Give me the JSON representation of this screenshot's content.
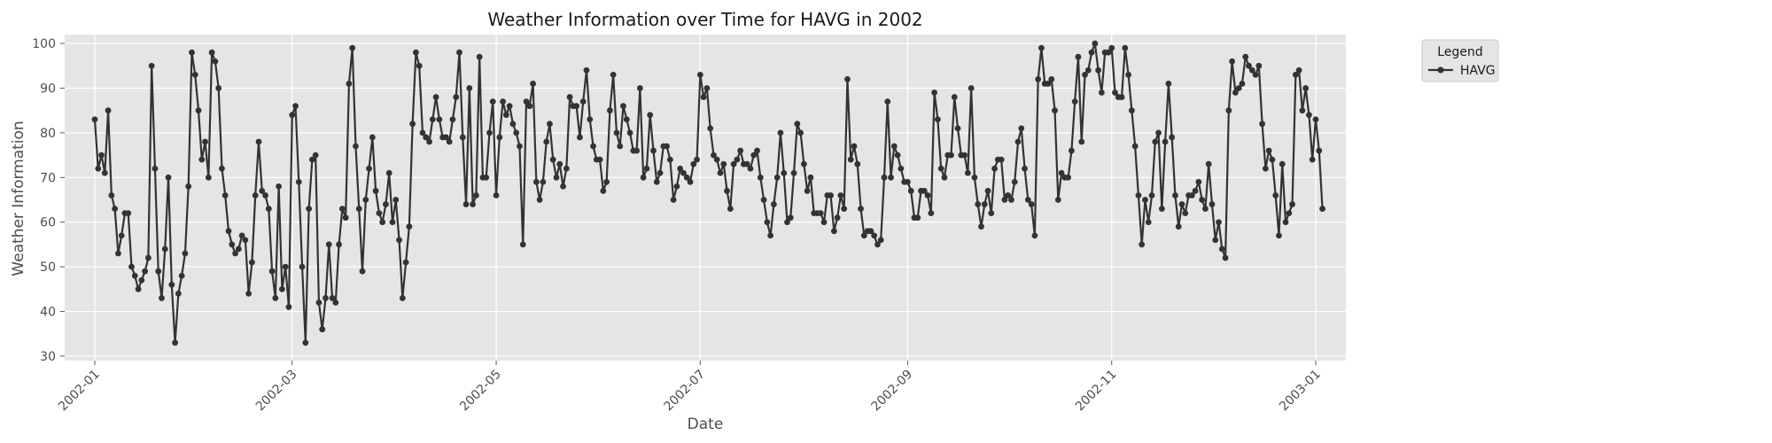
{
  "chart_data": {
    "type": "line",
    "title": "Weather Information over Time for HAVG in 2002",
    "xlabel": "Date",
    "ylabel": "Weather Information",
    "ylim": [
      29,
      102
    ],
    "xlim": [
      "2001-12-23",
      "2003-01-10"
    ],
    "x_ticks": [
      "2002-01",
      "2002-03",
      "2002-05",
      "2002-07",
      "2002-09",
      "2002-11",
      "2003-01"
    ],
    "y_ticks": [
      30,
      40,
      50,
      60,
      70,
      80,
      90,
      100
    ],
    "grid": true,
    "legend": {
      "title": "Legend",
      "placement": "outside-top-right"
    },
    "series": [
      {
        "name": "HAVG",
        "color": "#333333",
        "start_date": "2002-01-01",
        "step_days": 1,
        "values": [
          83,
          72,
          75,
          71,
          85,
          66,
          63,
          53,
          57,
          62,
          62,
          50,
          48,
          45,
          47,
          49,
          52,
          95,
          72,
          49,
          43,
          54,
          70,
          46,
          33,
          44,
          48,
          53,
          68,
          98,
          93,
          85,
          74,
          78,
          70,
          98,
          96,
          90,
          72,
          66,
          58,
          55,
          53,
          54,
          57,
          56,
          44,
          51,
          66,
          78,
          67,
          66,
          63,
          49,
          43,
          68,
          45,
          50,
          41,
          84,
          86,
          69,
          50,
          33,
          63,
          74,
          75,
          42,
          36,
          43,
          55,
          43,
          42,
          55,
          63,
          61,
          91,
          99,
          77,
          63,
          49,
          65,
          72,
          79,
          67,
          62,
          60,
          64,
          71,
          60,
          65,
          56,
          43,
          51,
          59,
          82,
          98,
          95,
          80,
          79,
          78,
          83,
          88,
          83,
          79,
          79,
          78,
          83,
          88,
          98,
          79,
          64,
          90,
          64,
          66,
          97,
          70,
          70,
          80,
          87,
          66,
          79,
          87,
          84,
          86,
          82,
          80,
          77,
          55,
          87,
          86,
          91,
          69,
          65,
          69,
          78,
          82,
          74,
          70,
          73,
          68,
          72,
          88,
          86,
          86,
          79,
          87,
          94,
          83,
          77,
          74,
          74,
          67,
          69,
          85,
          93,
          80,
          77,
          86,
          83,
          80,
          76,
          76,
          90,
          70,
          72,
          84,
          76,
          69,
          71,
          77,
          77,
          74,
          65,
          68,
          72,
          71,
          70,
          69,
          73,
          74,
          93,
          88,
          90,
          81,
          75,
          74,
          71,
          73,
          67,
          63,
          73,
          74,
          76,
          73,
          73,
          72,
          75,
          76,
          70,
          65,
          60,
          57,
          64,
          70,
          80,
          71,
          60,
          61,
          71,
          82,
          80,
          73,
          67,
          70,
          62,
          62,
          62,
          60,
          66,
          66,
          58,
          61,
          66,
          63,
          92,
          74,
          77,
          73,
          63,
          57,
          58,
          58,
          57,
          55,
          56,
          70,
          87,
          70,
          77,
          75,
          72,
          69,
          69,
          67,
          61,
          61,
          67,
          67,
          66,
          62,
          89,
          83,
          72,
          70,
          75,
          75,
          88,
          81,
          75,
          75,
          71,
          90,
          70,
          64,
          59,
          64,
          67,
          62,
          72,
          74,
          74,
          65,
          66,
          65,
          69,
          78,
          81,
          72,
          65,
          64,
          57,
          92,
          99,
          91,
          91,
          92,
          85,
          65,
          71,
          70,
          70,
          76,
          87,
          97,
          78,
          93,
          94,
          98,
          100,
          94,
          89,
          98,
          98,
          99,
          89,
          88,
          88,
          99,
          93,
          85,
          77,
          66,
          55,
          65,
          60,
          66,
          78,
          80,
          63,
          78,
          91,
          79,
          66,
          59,
          64,
          62,
          66,
          66,
          67,
          69,
          65,
          63,
          73,
          64,
          56,
          60,
          54,
          52,
          85,
          96,
          89,
          90,
          91,
          97,
          95,
          94,
          93,
          95,
          82,
          72,
          76,
          74,
          66,
          57,
          73,
          60,
          62,
          64,
          93,
          94,
          85,
          90,
          84,
          74,
          83,
          76,
          63
        ]
      }
    ]
  }
}
